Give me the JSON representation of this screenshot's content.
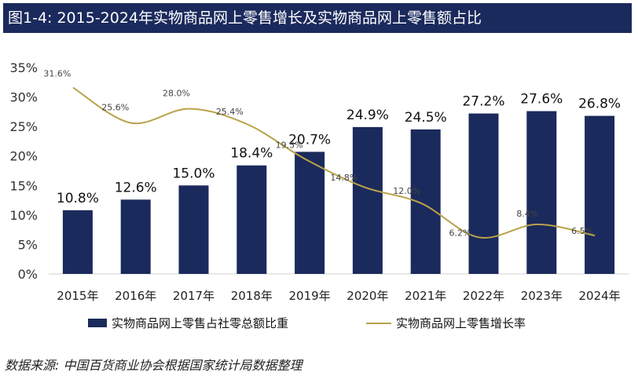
{
  "title": "图1-4: 2015-2024年实物商品网上零售增长及实物商品网上零售额占比",
  "source": "数据来源: 中国百货商业协会根据国家统计局数据整理",
  "colors": {
    "bar": "#1b2a5c",
    "line": "#b9a24a",
    "title_bg": "#1b2a5c"
  },
  "chart_data": {
    "type": "bar",
    "categories": [
      "2015年",
      "2016年",
      "2017年",
      "2018年",
      "2019年",
      "2020年",
      "2021年",
      "2022年",
      "2023年",
      "2024年"
    ],
    "series": [
      {
        "name": "实物商品网上零售占社零总额比重",
        "type": "bar",
        "values": [
          10.8,
          12.6,
          15.0,
          18.4,
          20.7,
          24.9,
          24.5,
          27.2,
          27.6,
          26.8
        ],
        "labels": [
          "10.8%",
          "12.6%",
          "15.0%",
          "18.4%",
          "20.7%",
          "24.9%",
          "24.5%",
          "27.2%",
          "27.6%",
          "26.8%"
        ]
      },
      {
        "name": "实物商品网上零售增长率",
        "type": "line",
        "values": [
          31.6,
          25.6,
          28.0,
          25.4,
          19.5,
          14.8,
          12.0,
          6.2,
          8.4,
          6.5
        ],
        "labels": [
          "31.6%",
          "25.6%",
          "28.0%",
          "25.4%",
          "19.5%",
          "14.8%",
          "12.0%",
          "6.2%",
          "8.4%",
          "6.5%"
        ]
      }
    ],
    "yticks": [
      "0%",
      "5%",
      "10%",
      "15%",
      "20%",
      "25%",
      "30%",
      "35%"
    ],
    "ylim": [
      0,
      35
    ],
    "grid": false,
    "legend": "bottom"
  }
}
